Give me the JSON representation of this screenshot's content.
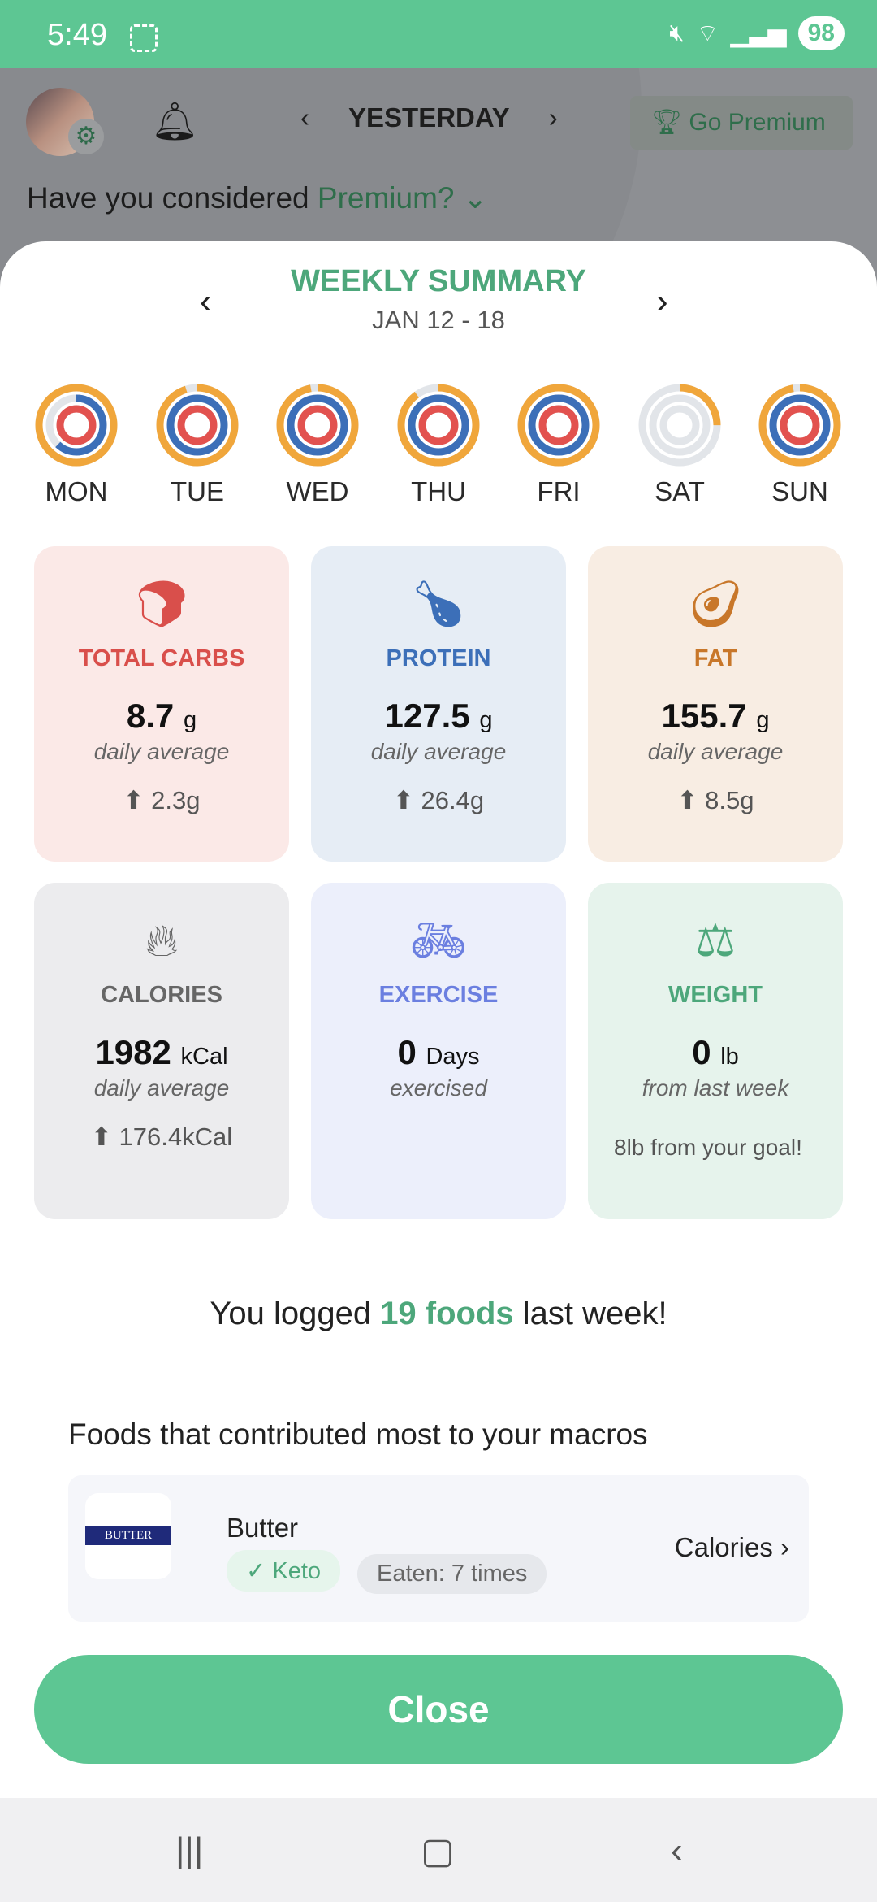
{
  "status": {
    "time": "5:49",
    "battery": "98"
  },
  "header": {
    "date_label": "YESTERDAY",
    "premium_button": "Go Premium",
    "consider_text": "Have you considered ",
    "consider_link": "Premium?"
  },
  "summary": {
    "title": "WEEKLY SUMMARY",
    "date_range": "JAN 12 - 18"
  },
  "colors": {
    "accent": "#5dc693",
    "fat_ring": "#f0a63b",
    "protein_ring": "#3c6fb8",
    "carbs_ring": "#e2524f",
    "track": "#e2e5e9"
  },
  "days": [
    {
      "label": "MON",
      "fat": 1,
      "protein": 0.62,
      "carbs": 1
    },
    {
      "label": "TUE",
      "fat": 0.95,
      "protein": 1,
      "carbs": 1
    },
    {
      "label": "WED",
      "fat": 0.97,
      "protein": 1,
      "carbs": 1
    },
    {
      "label": "THU",
      "fat": 0.9,
      "protein": 1,
      "carbs": 1
    },
    {
      "label": "FRI",
      "fat": 1,
      "protein": 1,
      "carbs": 1
    },
    {
      "label": "SAT",
      "fat": 0.25,
      "protein": 0,
      "carbs": 0
    },
    {
      "label": "SUN",
      "fat": 0.97,
      "protein": 1,
      "carbs": 1
    }
  ],
  "cards": [
    {
      "label": "TOTAL CARBS",
      "value": "8.7",
      "unit": "g",
      "sub": "daily average",
      "change": "2.3g",
      "icon": "bread-icon",
      "color": "#d94f4b",
      "bg": "#fbe9e7"
    },
    {
      "label": "PROTEIN",
      "value": "127.5",
      "unit": "g",
      "sub": "daily average",
      "change": "26.4g",
      "icon": "drumstick-icon",
      "color": "#3c6fb8",
      "bg": "#e6edf5"
    },
    {
      "label": "FAT",
      "value": "155.7",
      "unit": "g",
      "sub": "daily average",
      "change": "8.5g",
      "icon": "avocado-icon",
      "color": "#c8772a",
      "bg": "#f8ede3"
    },
    {
      "label": "CALORIES",
      "value": "1982",
      "unit": "kCal",
      "sub": "daily average",
      "change": "176.4kCal",
      "icon": "flame-icon",
      "color": "#666666",
      "bg": "#ececee"
    },
    {
      "label": "EXERCISE",
      "value": "0",
      "unit": "Days",
      "sub": "exercised",
      "icon": "bicycle-icon",
      "color": "#6b7fe0",
      "bg": "#eceffb"
    },
    {
      "label": "WEIGHT",
      "value": "0",
      "unit": "lb",
      "sub": "from last week",
      "goal": "8lb from your goal!",
      "icon": "scale-icon",
      "color": "#4da77b",
      "bg": "#e6f3ec"
    }
  ],
  "logged": {
    "prefix": "You logged ",
    "highlight": "19 foods",
    "suffix": " last week!"
  },
  "contrib_title": "Foods that contributed most to your macros",
  "food": {
    "name": "Butter",
    "tag": "Keto",
    "eaten": "Eaten: 7 times",
    "metric": "Calories",
    "image_text": "BUTTER"
  },
  "close_label": "Close"
}
